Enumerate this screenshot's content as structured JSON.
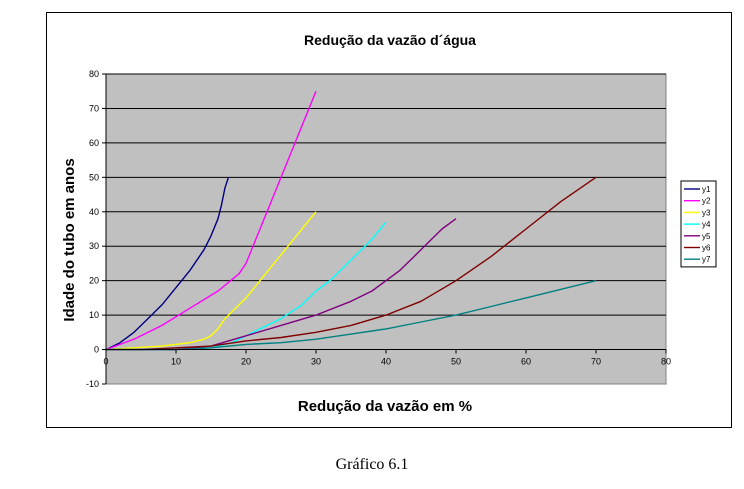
{
  "caption": "Gráfico 6.1",
  "chart_data": {
    "type": "line",
    "title": "Redução da vazão d´água",
    "xlabel": "Redução da vazão em %",
    "ylabel": "Idade do tubo em anos",
    "xlim": [
      0,
      80
    ],
    "ylim": [
      -10,
      80
    ],
    "xticks": [
      0,
      10,
      20,
      30,
      40,
      50,
      60,
      70,
      80
    ],
    "yticks": [
      -10,
      0,
      10,
      20,
      30,
      40,
      50,
      60,
      70,
      80
    ],
    "grid": "horizontal",
    "plot_background": "#c0c0c0",
    "legend_position": "right",
    "series": [
      {
        "name": "y1",
        "color": "#000080",
        "x": [
          0,
          2,
          4,
          6,
          8,
          10,
          12,
          14,
          15,
          16,
          16.5,
          17,
          17.5
        ],
        "y": [
          0,
          2,
          5,
          9,
          13,
          18,
          23,
          29,
          33,
          38,
          42,
          47,
          50
        ]
      },
      {
        "name": "y2",
        "color": "#ff00ff",
        "x": [
          0,
          4,
          8,
          12,
          16,
          19,
          20,
          22,
          24,
          26,
          28,
          30
        ],
        "y": [
          0,
          3,
          7,
          12,
          17,
          22,
          25,
          35,
          45,
          55,
          65,
          75
        ]
      },
      {
        "name": "y3",
        "color": "#ffff00",
        "x": [
          0,
          4,
          8,
          12,
          14,
          15,
          16,
          17,
          18,
          20,
          22,
          24,
          26,
          28,
          30
        ],
        "y": [
          0,
          0.5,
          1,
          2,
          3,
          4,
          6,
          9,
          11,
          15,
          20,
          25,
          30,
          35,
          40
        ]
      },
      {
        "name": "y4",
        "color": "#00ffff",
        "x": [
          0,
          10,
          15,
          18,
          20,
          22,
          25,
          28,
          30,
          32,
          35,
          38,
          40
        ],
        "y": [
          0,
          0,
          0.5,
          2,
          4,
          6,
          9,
          13,
          17,
          20,
          26,
          32,
          37
        ]
      },
      {
        "name": "y5",
        "color": "#800080",
        "x": [
          0,
          10,
          15,
          20,
          25,
          30,
          35,
          38,
          40,
          42,
          44,
          46,
          48,
          50
        ],
        "y": [
          0,
          0,
          1,
          4,
          7,
          10,
          14,
          17,
          20,
          23,
          27,
          31,
          35,
          38
        ]
      },
      {
        "name": "y6",
        "color": "#800000",
        "x": [
          0,
          5,
          10,
          15,
          20,
          25,
          30,
          35,
          40,
          45,
          50,
          55,
          60,
          65,
          70
        ],
        "y": [
          0,
          0,
          0.5,
          1,
          2.5,
          3.5,
          5,
          7,
          10,
          14,
          20,
          27,
          35,
          43,
          50
        ]
      },
      {
        "name": "y7",
        "color": "#008080",
        "x": [
          0,
          5,
          10,
          15,
          20,
          25,
          30,
          35,
          40,
          45,
          50,
          55,
          60,
          65,
          70
        ],
        "y": [
          0,
          0,
          0,
          0.5,
          1.5,
          2,
          3,
          4.5,
          6,
          8,
          10,
          12.5,
          15,
          17.5,
          20
        ]
      }
    ]
  }
}
